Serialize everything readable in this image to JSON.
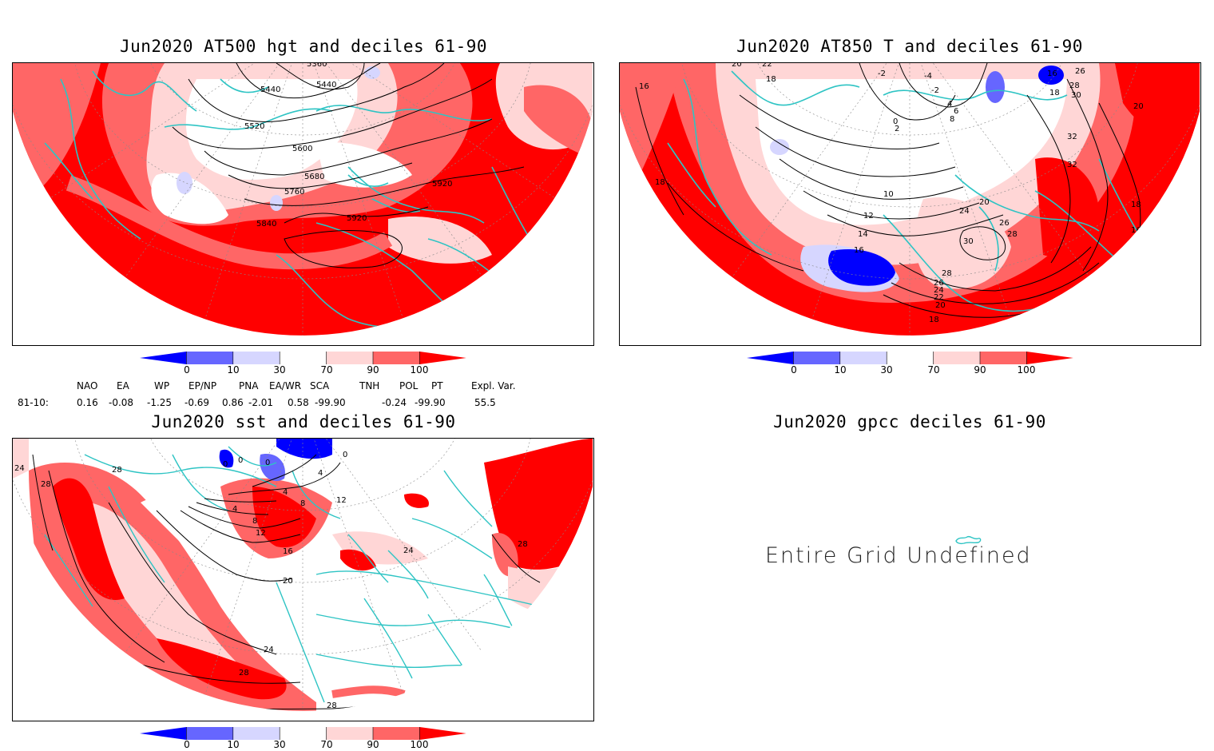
{
  "panels": {
    "p1": {
      "title": "Jun2020 AT500 hgt and deciles 61-90",
      "contour_labels": [
        "5360",
        "5440",
        "5440",
        "5520",
        "5600",
        "5680",
        "5760",
        "5840",
        "5920",
        "5920"
      ]
    },
    "p2": {
      "title": "Jun2020 AT850 T and deciles 61-90",
      "contour_labels": [
        "20",
        "22",
        "18",
        "16",
        "-2",
        "-4",
        "-2",
        "0",
        "2",
        "4",
        "6",
        "8",
        "16",
        "26",
        "28",
        "30",
        "18",
        "20",
        "32",
        "32",
        "10",
        "12",
        "14",
        "16",
        "20",
        "24",
        "26",
        "28",
        "30",
        "28",
        "26",
        "24",
        "22",
        "20",
        "18",
        "18",
        "16",
        "18"
      ]
    },
    "p3": {
      "title": "Jun2020 sst and deciles 61-90",
      "contour_labels": [
        "24",
        "28",
        "28",
        "0",
        "0",
        "0",
        "0",
        "4",
        "4",
        "8",
        "12",
        "4",
        "8",
        "12",
        "16",
        "20",
        "24",
        "28",
        "28",
        "24",
        "28"
      ]
    },
    "p4": {
      "title": "Jun2020 gpcc deciles 61-90",
      "message": "Entire Grid Undefined"
    }
  },
  "colorbar": {
    "ticks": [
      "0",
      "10",
      "30",
      "70",
      "90",
      "100"
    ],
    "colors": [
      "#0000ff",
      "#6666ff",
      "#d6d6ff",
      "#ffffff",
      "#ffd6d6",
      "#ff6666",
      "#ff0000"
    ]
  },
  "indices": {
    "headers": [
      "NAO",
      "EA",
      "WP",
      "EP/NP",
      "PNA",
      "EA/WR",
      "SCA",
      "TNH",
      "POL",
      "PT",
      "Expl. Var."
    ],
    "row_label": "81-10:",
    "values": [
      "0.16",
      "-0.08",
      "-1.25",
      "-0.69",
      "0.86",
      "-2.01",
      "0.58",
      "-99.90",
      "-0.24",
      "-99.90",
      "55.5"
    ]
  },
  "map_colors": {
    "coast": "#2ec4c4",
    "contour": "#000000",
    "grid": "#888888"
  }
}
